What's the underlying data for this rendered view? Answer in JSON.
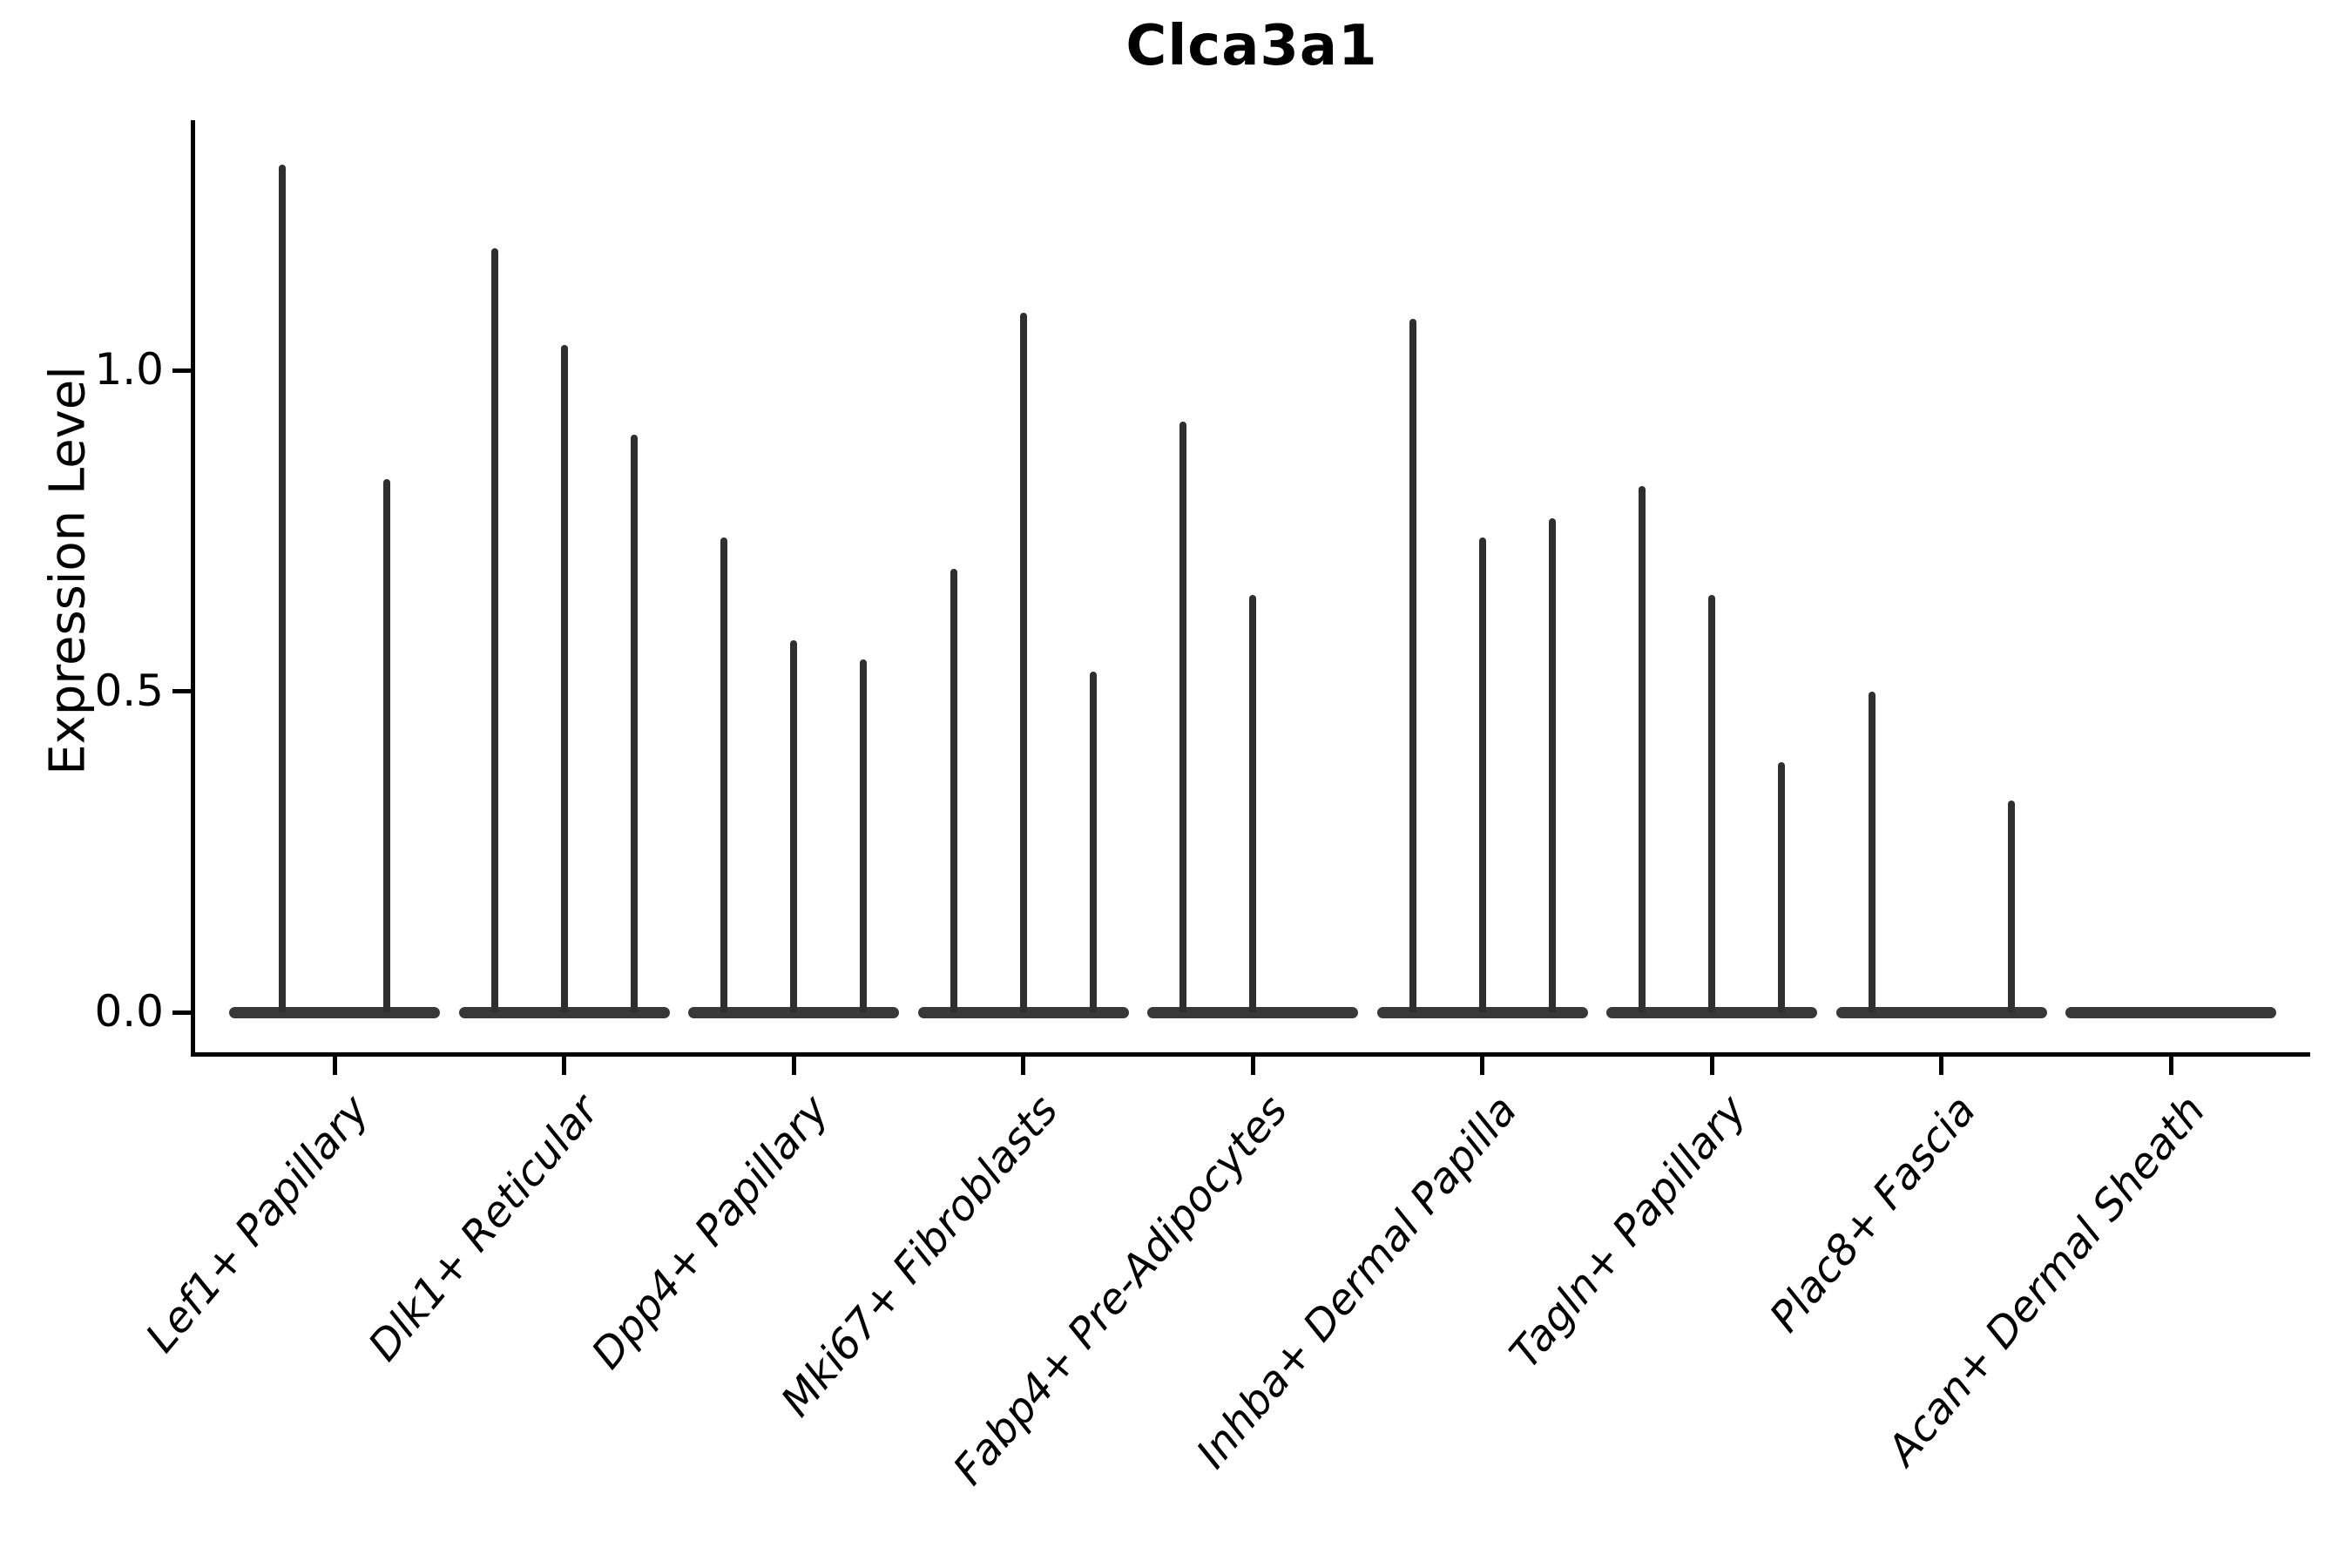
{
  "title": "Clca3a1",
  "y_axis": {
    "label": "Expression Level",
    "tick_labels": [
      "0.0",
      "0.5",
      "1.0"
    ]
  },
  "chart_data": {
    "type": "violin",
    "title": "Clca3a1",
    "xlabel": "",
    "ylabel": "Expression Level",
    "ylim": [
      -0.06,
      1.39
    ],
    "yticks": [
      0.0,
      0.5,
      1.0
    ],
    "grid": false,
    "legend_position": "none",
    "violin_style": "near-zero-width violins: heavy density pancake at 0 with a thin spike rising to the max expression value",
    "categories": [
      "Lef1+ Papillary",
      "Dlk1+ Reticular",
      "Dpp4+ Papillary",
      "Mki67+ Fibroblasts",
      "Fabp4+ Pre-Adipocytes",
      "Inhba+ Dermal Papilla",
      "Tagln+ Papillary",
      "Plac8+ Fascia",
      "Acan+ Dermal Sheath"
    ],
    "groups": [
      {
        "category": "Lef1+ Papillary",
        "violin_peaks": [
          1.32,
          0.83
        ]
      },
      {
        "category": "Dlk1+ Reticular",
        "violin_peaks": [
          1.19,
          1.04,
          0.9
        ]
      },
      {
        "category": "Dpp4+ Papillary",
        "violin_peaks": [
          0.74,
          0.58,
          0.55
        ]
      },
      {
        "category": "Mki67+ Fibroblasts",
        "violin_peaks": [
          0.69,
          1.09,
          0.53
        ]
      },
      {
        "category": "Fabp4+ Pre-Adipocytes",
        "violin_peaks": [
          0.92,
          0.65,
          0.0
        ]
      },
      {
        "category": "Inhba+ Dermal Papilla",
        "violin_peaks": [
          1.08,
          0.74,
          0.77
        ]
      },
      {
        "category": "Tagln+ Papillary",
        "violin_peaks": [
          0.82,
          0.65,
          0.39
        ]
      },
      {
        "category": "Plac8+ Fascia",
        "violin_peaks": [
          0.5,
          0.0,
          0.33
        ]
      },
      {
        "category": "Acan+ Dermal Sheath",
        "violin_peaks": [
          0.0,
          0.0,
          0.0
        ]
      }
    ],
    "colors": {
      "violin": "#2f2f2f",
      "violin_base": "#383838",
      "axis": "#000000",
      "text": "#000000"
    }
  }
}
